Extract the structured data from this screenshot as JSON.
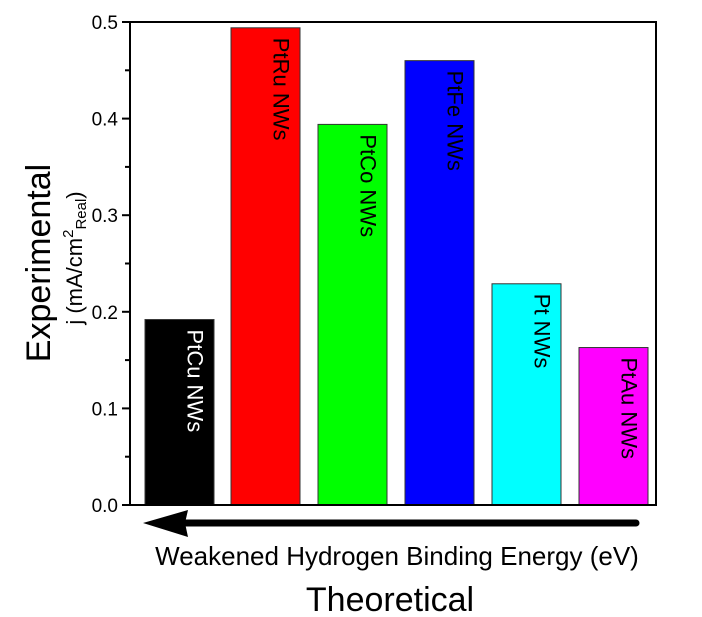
{
  "chart_data": {
    "type": "bar",
    "title": "",
    "categories": [
      "PtCu NWs",
      "PtRu NWs",
      "PtCo NWs",
      "PtFe NWs",
      "Pt NWs",
      "PtAu NWs"
    ],
    "values": [
      0.192,
      0.494,
      0.394,
      0.46,
      0.229,
      0.163
    ],
    "colors": [
      "#000000",
      "#ff0000",
      "#00ff00",
      "#0000ff",
      "#00ffff",
      "#ff00ff"
    ],
    "label_colors": [
      "#ffffff",
      "#000000",
      "#000000",
      "#000000",
      "#000000",
      "#000000"
    ],
    "ylim": [
      0.0,
      0.5
    ],
    "yticks": [
      "0.0",
      "0.1",
      "0.2",
      "0.3",
      "0.4",
      "0.5"
    ],
    "ylabel_title": "Experimental",
    "ylabel_main": "j (mA/cm",
    "ylabel_sup": "2",
    "ylabel_sub": "Real",
    "ylabel_close": ")",
    "xlabel": "Weakened Hydrogen Binding Energy (eV)",
    "xlabel_title": "Theoretical",
    "annotation": "arrow pointing left below x-axis",
    "grid": false,
    "legend": "none"
  }
}
